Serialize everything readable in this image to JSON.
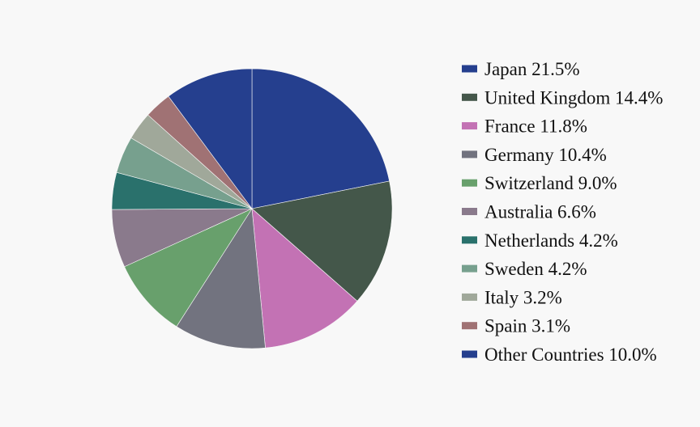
{
  "chart_data": {
    "type": "pie",
    "title": "",
    "legend_position": "right",
    "start_angle_deg": 90,
    "direction": "clockwise",
    "slices": [
      {
        "label": "Japan 21.5%",
        "value": 21.5,
        "color": "#253f8e"
      },
      {
        "label": "United Kingdom 14.4%",
        "value": 14.4,
        "color": "#44574a"
      },
      {
        "label": "France 11.8%",
        "value": 11.8,
        "color": "#c372b4"
      },
      {
        "label": "Germany 10.4%",
        "value": 10.4,
        "color": "#72737f"
      },
      {
        "label": "Switzerland 9.0%",
        "value": 9.0,
        "color": "#68a06c"
      },
      {
        "label": "Australia 6.6%",
        "value": 6.6,
        "color": "#8a7a8c"
      },
      {
        "label": "Netherlands 4.2%",
        "value": 4.2,
        "color": "#2a716c"
      },
      {
        "label": "Sweden 4.2%",
        "value": 4.2,
        "color": "#77a08e"
      },
      {
        "label": "Italy 3.2%",
        "value": 3.2,
        "color": "#a0a89a"
      },
      {
        "label": "Spain 3.1%",
        "value": 3.1,
        "color": "#a07274"
      },
      {
        "label": "Other Countries 10.0%",
        "value": 10.0,
        "color": "#253f8e"
      }
    ]
  }
}
